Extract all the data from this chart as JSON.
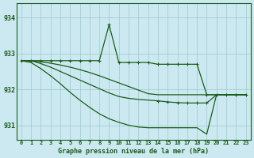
{
  "title": "Graphe pression niveau de la mer (hPa)",
  "background_color": "#cce8f0",
  "plot_bg_color": "#cce8f0",
  "grid_color": "#99cccc",
  "line_color": "#1a5c1a",
  "ylim": [
    930.6,
    934.4
  ],
  "yticks": [
    931,
    932,
    933,
    934
  ],
  "xlim": [
    -0.5,
    23.5
  ],
  "xticks": [
    0,
    1,
    2,
    3,
    4,
    5,
    6,
    7,
    8,
    9,
    10,
    11,
    12,
    13,
    14,
    15,
    16,
    17,
    18,
    19,
    20,
    21,
    22,
    23
  ],
  "s1_x": [
    0,
    1,
    2,
    3,
    4,
    5,
    6,
    7,
    8,
    9,
    10,
    11,
    12,
    13,
    14,
    15,
    16,
    17,
    18,
    19,
    20,
    21,
    22,
    23
  ],
  "s1_y": [
    932.8,
    932.8,
    932.8,
    932.8,
    932.8,
    932.8,
    932.8,
    932.8,
    932.8,
    933.8,
    932.75,
    932.75,
    932.75,
    932.75,
    932.7,
    932.7,
    932.7,
    932.7,
    932.7,
    931.85,
    931.85,
    931.85,
    931.85,
    931.85
  ],
  "s2_x": [
    0,
    1,
    2,
    3,
    4,
    5,
    6,
    7,
    8,
    9,
    10,
    11,
    12,
    13,
    14,
    15,
    16,
    17,
    18,
    19,
    20,
    21,
    22,
    23
  ],
  "s2_y": [
    932.8,
    932.8,
    932.77,
    932.73,
    932.68,
    932.62,
    932.55,
    932.47,
    932.38,
    932.28,
    932.18,
    932.08,
    931.98,
    931.88,
    931.85,
    931.85,
    931.85,
    931.85,
    931.85,
    931.85,
    931.85,
    931.85,
    931.85,
    931.85
  ],
  "s3_x": [
    0,
    1,
    2,
    3,
    4,
    5,
    6,
    7,
    8,
    9,
    10,
    11,
    12,
    13,
    14,
    15,
    16,
    17,
    18,
    19,
    20,
    21,
    22,
    23
  ],
  "s3_y": [
    932.8,
    932.8,
    932.72,
    932.62,
    932.5,
    932.38,
    932.26,
    932.14,
    932.02,
    931.9,
    931.8,
    931.75,
    931.72,
    931.7,
    931.68,
    931.65,
    931.63,
    931.62,
    931.62,
    931.62,
    931.85,
    931.85,
    931.85,
    931.85
  ],
  "s4_x": [
    0,
    1,
    2,
    3,
    4,
    5,
    6,
    7,
    8,
    9,
    10,
    11,
    12,
    13,
    14,
    15,
    16,
    17,
    18,
    19,
    20,
    21,
    22,
    23
  ],
  "s4_y": [
    932.8,
    932.75,
    932.58,
    932.38,
    932.16,
    931.92,
    931.7,
    931.5,
    931.32,
    931.18,
    931.08,
    931.0,
    930.95,
    930.93,
    930.93,
    930.93,
    930.93,
    930.93,
    930.93,
    930.75,
    931.85,
    931.85,
    931.85,
    931.85
  ]
}
